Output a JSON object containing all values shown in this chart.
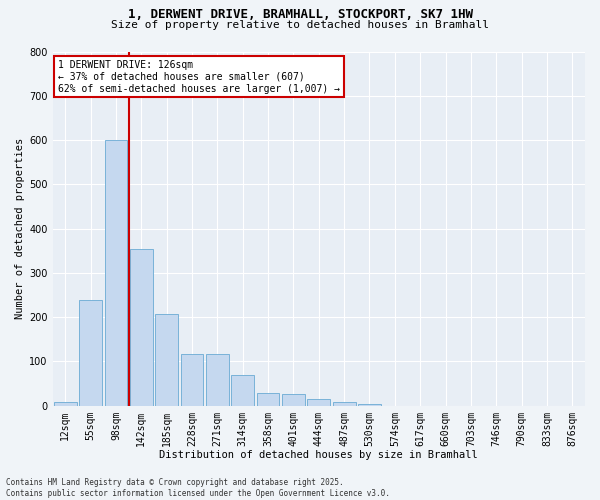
{
  "title": "1, DERWENT DRIVE, BRAMHALL, STOCKPORT, SK7 1HW",
  "subtitle": "Size of property relative to detached houses in Bramhall",
  "xlabel": "Distribution of detached houses by size in Bramhall",
  "ylabel": "Number of detached properties",
  "bar_color": "#c5d8ef",
  "bar_edge_color": "#6aaad4",
  "background_color": "#e8eef5",
  "grid_color": "#ffffff",
  "annotation_line_color": "#cc0000",
  "annotation_box_edgecolor": "#cc0000",
  "annotation_text": "1 DERWENT DRIVE: 126sqm\n← 37% of detached houses are smaller (607)\n62% of semi-detached houses are larger (1,007) →",
  "footer_text": "Contains HM Land Registry data © Crown copyright and database right 2025.\nContains public sector information licensed under the Open Government Licence v3.0.",
  "categories": [
    "12sqm",
    "55sqm",
    "98sqm",
    "142sqm",
    "185sqm",
    "228sqm",
    "271sqm",
    "314sqm",
    "358sqm",
    "401sqm",
    "444sqm",
    "487sqm",
    "530sqm",
    "574sqm",
    "617sqm",
    "660sqm",
    "703sqm",
    "746sqm",
    "790sqm",
    "833sqm",
    "876sqm"
  ],
  "values": [
    8,
    238,
    600,
    355,
    207,
    116,
    116,
    70,
    28,
    27,
    15,
    9,
    5,
    0,
    0,
    0,
    0,
    0,
    0,
    0,
    0
  ],
  "property_bar_index": 2,
  "ylim": [
    0,
    800
  ],
  "yticks": [
    0,
    100,
    200,
    300,
    400,
    500,
    600,
    700,
    800
  ],
  "fig_bg_color": "#f0f4f8",
  "title_fontsize": 9,
  "subtitle_fontsize": 8,
  "axis_label_fontsize": 7.5,
  "tick_fontsize": 7,
  "footer_fontsize": 5.5
}
